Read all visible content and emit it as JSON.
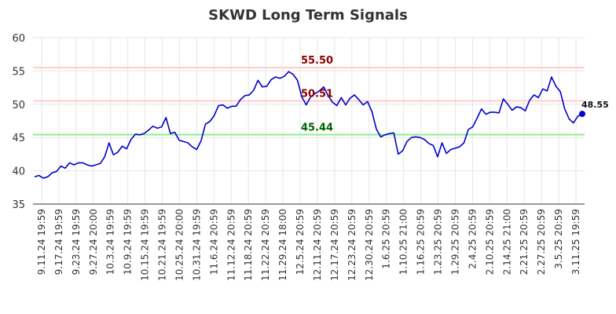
{
  "chart_data": {
    "type": "line",
    "title": "SKWD Long Term Signals",
    "ylim": [
      35,
      60
    ],
    "yticks": [
      35,
      40,
      45,
      50,
      55,
      60
    ],
    "xtick_labels": [
      "9.11.24 19:59",
      "9.17.24 19:59",
      "9.23.24 19:59",
      "9.27.24 20:00",
      "10.3.24 19:59",
      "10.9.24 19:59",
      "10.15.24 19:59",
      "10.21.24 19:59",
      "10.25.24 20:00",
      "10.31.24 19:59",
      "11.6.24 20:59",
      "11.12.24 20:59",
      "11.18.24 20:59",
      "11.22.24 20:59",
      "11.29.24 18:00",
      "12.5.24 20:59",
      "12.11.24 20:59",
      "12.17.24 20:59",
      "12.23.24 20:59",
      "12.30.24 20:59",
      "1.6.25 20:59",
      "1.10.25 21:00",
      "1.16.25 20:59",
      "1.23.25 20:59",
      "1.29.25 20:59",
      "2.4.25 20:59",
      "2.10.25 20:59",
      "2.14.25 21:00",
      "2.21.25 20:59",
      "2.27.25 20:59",
      "3.5.25 20:59",
      "3.11.25 19:59"
    ],
    "grid": true,
    "series": [
      {
        "color": "#0000cc",
        "values": [
          39.1,
          39.3,
          38.9,
          39.1,
          39.7,
          39.9,
          40.7,
          40.4,
          41.2,
          40.9,
          41.2,
          41.2,
          40.9,
          40.7,
          40.9,
          41.1,
          42.1,
          44.2,
          42.4,
          42.8,
          43.7,
          43.3,
          44.7,
          45.5,
          45.4,
          45.6,
          46.1,
          46.7,
          46.4,
          46.6,
          48.0,
          45.6,
          45.8,
          44.6,
          44.4,
          44.2,
          43.6,
          43.2,
          44.5,
          47.0,
          47.4,
          48.3,
          49.8,
          49.9,
          49.4,
          49.7,
          49.7,
          50.7,
          51.3,
          51.4,
          52.1,
          53.6,
          52.6,
          52.7,
          53.7,
          54.1,
          53.9,
          54.2,
          54.9,
          54.5,
          53.6,
          51.1,
          49.9,
          51.1,
          51.6,
          52.0,
          52.6,
          51.3,
          50.3,
          49.8,
          51.0,
          49.9,
          50.9,
          51.4,
          50.7,
          49.9,
          50.4,
          48.9,
          46.3,
          45.1,
          45.4,
          45.6,
          45.7,
          42.5,
          43.0,
          44.4,
          45.0,
          45.1,
          45.0,
          44.7,
          44.1,
          43.8,
          42.1,
          44.2,
          42.6,
          43.2,
          43.4,
          43.6,
          44.2,
          46.2,
          46.6,
          47.9,
          49.3,
          48.5,
          48.8,
          48.8,
          48.7,
          50.8,
          50.0,
          49.1,
          49.6,
          49.5,
          49.0,
          50.6,
          51.4,
          51.0,
          52.3,
          52.0,
          54.1,
          52.7,
          51.9,
          49.3,
          47.8,
          47.2,
          48.2,
          48.55
        ]
      }
    ],
    "hlines": [
      {
        "value": 55.5,
        "label": "55.50",
        "line_color": "#ffcccc",
        "text_color": "#8b0000"
      },
      {
        "value": 50.51,
        "label": "50.51",
        "line_color": "#ffcccc",
        "text_color": "#8b0000"
      },
      {
        "value": 45.44,
        "label": "45.44",
        "line_color": "#90ee90",
        "text_color": "#006400"
      }
    ],
    "last_value_label": "48.55"
  }
}
